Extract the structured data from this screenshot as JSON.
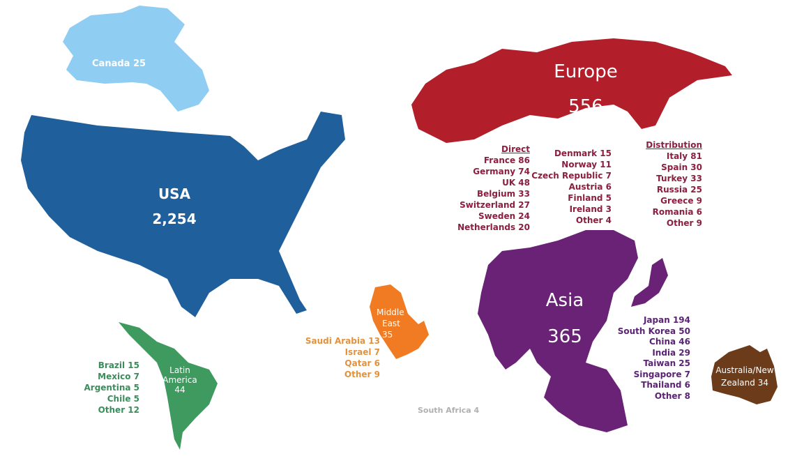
{
  "colors": {
    "canada": "#8fcdf2",
    "usa": "#1f5f9b",
    "latin_america": "#3e9a5e",
    "middle_east": "#f07b22",
    "europe": "#b21f2b",
    "asia": "#6a2277",
    "australia": "#6b3b1a",
    "south_africa": "#b0b0b0"
  },
  "regions": {
    "canada": {
      "name": "Canada",
      "value": "25"
    },
    "usa": {
      "name": "USA",
      "value": "2,254"
    },
    "europe": {
      "name": "Europe",
      "value": "556"
    },
    "asia": {
      "name": "Asia",
      "value": "365"
    },
    "latin_america": {
      "name1": "Latin",
      "name2": "America",
      "value": "44"
    },
    "middle_east": {
      "name1": "Middle",
      "name2": "East",
      "value": "35"
    },
    "australia": {
      "name1": "Australia/New",
      "name2": "Zealand 34"
    },
    "south_africa": {
      "label": "South Africa 4"
    }
  },
  "europe_lists": {
    "direct_header": "Direct",
    "direct": [
      "France 86",
      "Germany 74",
      "UK 48",
      "Belgium 33",
      "Switzerland 27",
      "Sweden 24",
      "Netherlands 20"
    ],
    "direct2": [
      "Denmark 15",
      "Norway 11",
      "Czech Republic  7",
      "Austria 6",
      "Finland 5",
      "Ireland 3",
      "Other 4"
    ],
    "distribution_header": "Distribution",
    "distribution": [
      "Italy 81",
      "Spain 30",
      "Turkey 33",
      "Russia 25",
      "Greece 9",
      "Romania 6",
      "Other 9"
    ]
  },
  "asia_list": [
    "Japan 194",
    "South Korea 50",
    "China 46",
    "India 29",
    "Taiwan 25",
    "Singapore  7",
    "Thailand 6",
    "Other 8"
  ],
  "latin_list": [
    "Brazil 15",
    "Mexico 7",
    "Argentina 5",
    "Chile 5",
    "Other 12"
  ],
  "middle_east_list": [
    "Saudi  Arabia 13",
    "Israel 7",
    "Qatar 6",
    "Other 9"
  ]
}
